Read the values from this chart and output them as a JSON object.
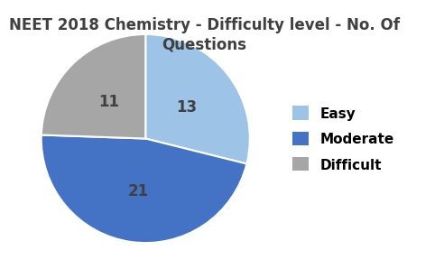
{
  "title": "NEET 2018 Chemistry - Difficulty level - No. Of\nQuestions",
  "labels": [
    "Easy",
    "Moderate",
    "Difficult"
  ],
  "values": [
    13,
    21,
    11
  ],
  "colors": [
    "#9dc3e6",
    "#4472c4",
    "#a6a6a6"
  ],
  "autopct_labels": [
    "13",
    "21",
    "11"
  ],
  "legend_labels": [
    "Easy",
    "Moderate",
    "Difficult"
  ],
  "startangle": 90,
  "title_fontsize": 12,
  "label_fontsize": 12
}
